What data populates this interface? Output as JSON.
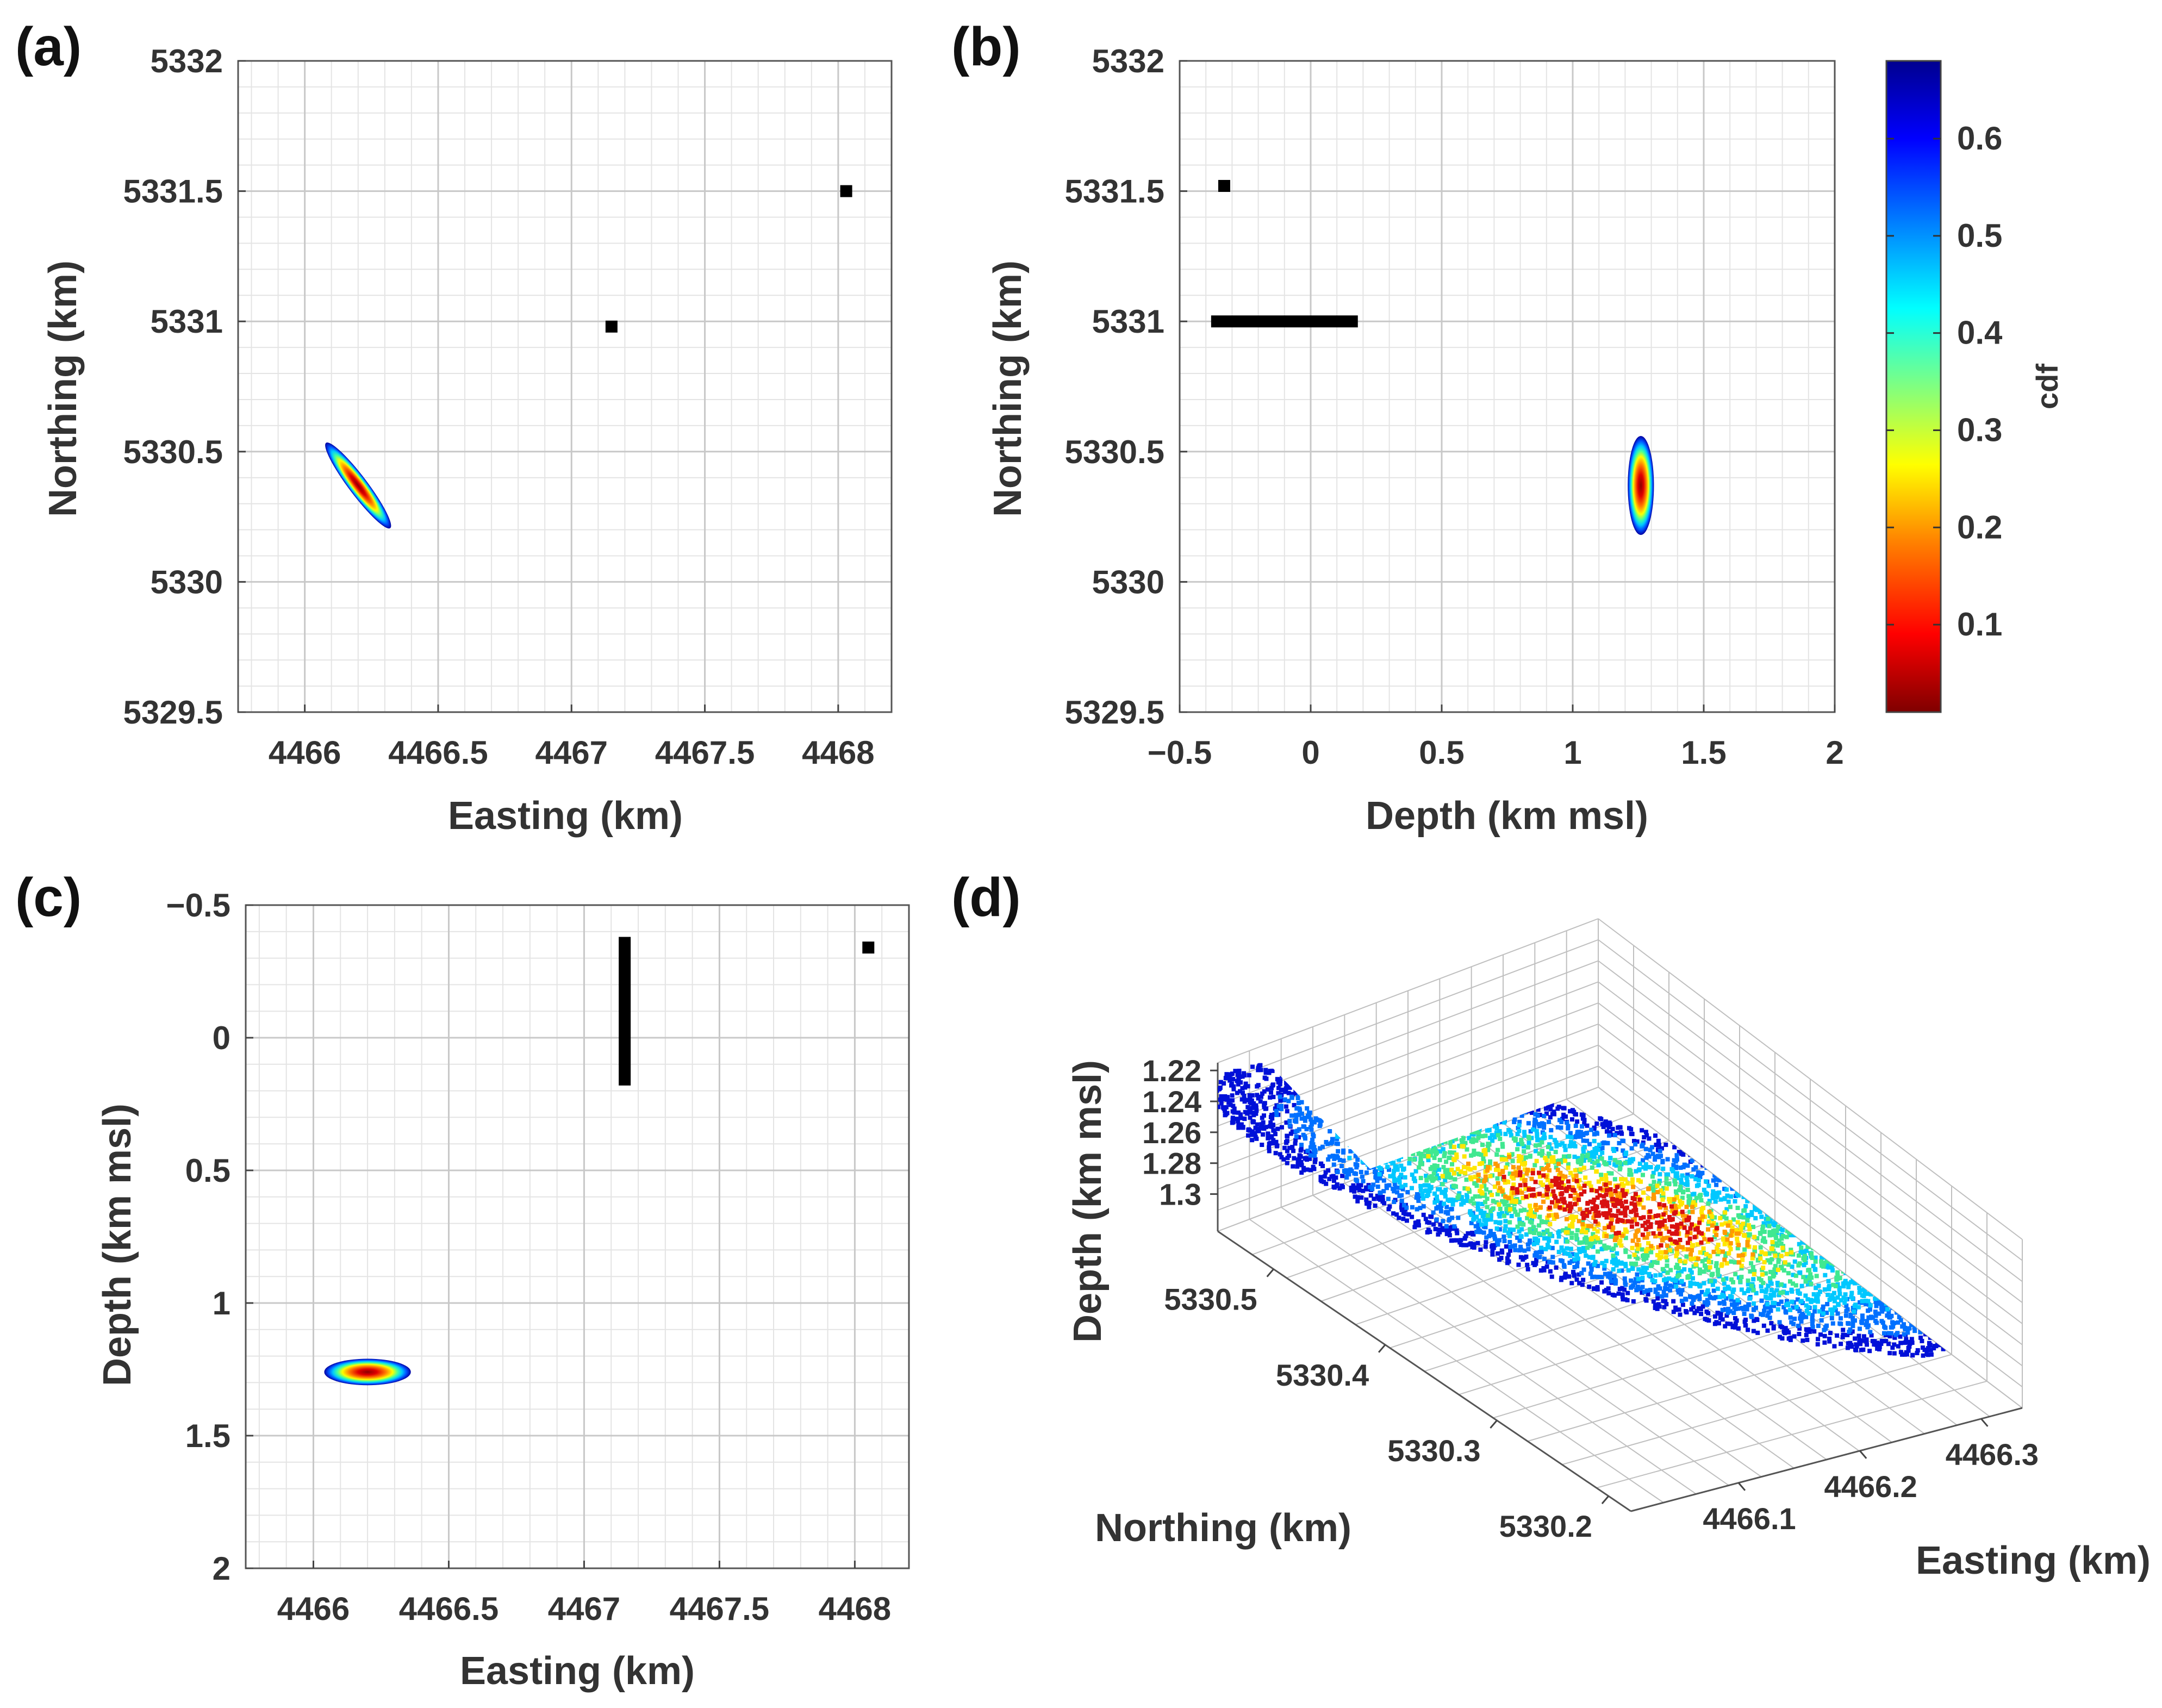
{
  "panel_labels": {
    "a": "(a)",
    "b": "(b)",
    "c": "(c)",
    "d": "(d)"
  },
  "chart_data": [
    {
      "panel": "(a)",
      "type": "heatmap",
      "xlabel": "Easting (km)",
      "ylabel": "Northing (km)",
      "xlim": [
        4465.75,
        4468.2
      ],
      "ylim": [
        5329.5,
        5332
      ],
      "xticks": [
        "4466",
        "4466.5",
        "4467",
        "4467.5",
        "4468"
      ],
      "xtick_values": [
        4466,
        4466.5,
        4467,
        4467.5,
        4468
      ],
      "yticks": [
        "5332",
        "5331.5",
        "5331",
        "5330.5",
        "5330",
        "5329.5"
      ],
      "ytick_values": [
        5332,
        5331.5,
        5331,
        5330.5,
        5330,
        5329.5
      ],
      "grid": true,
      "stations": [
        {
          "x": 4468.03,
          "y": 5331.5
        },
        {
          "x": 4467.15,
          "y": 5330.98
        }
      ],
      "pdf_ellipse": {
        "center_x": 4466.2,
        "center_y": 5330.37,
        "semi_major_km": 0.2,
        "semi_minor_km": 0.035,
        "orientation": "NW-SE"
      }
    },
    {
      "panel": "(b)",
      "type": "heatmap",
      "xlabel": "Depth (km msl)",
      "ylabel": "Northing (km)",
      "xlim": [
        -0.5,
        2
      ],
      "ylim": [
        5329.5,
        5332
      ],
      "xticks": [
        "−0.5",
        "0",
        "0.5",
        "1",
        "1.5",
        "2"
      ],
      "xtick_values": [
        -0.5,
        0,
        0.5,
        1,
        1.5,
        2
      ],
      "yticks": [
        "5332",
        "5331.5",
        "5331",
        "5330.5",
        "5330",
        "5329.5"
      ],
      "ytick_values": [
        5332,
        5331.5,
        5331,
        5330.5,
        5330,
        5329.5
      ],
      "grid": true,
      "stations": [
        {
          "x": -0.33,
          "y": 5331.52
        }
      ],
      "borehole": {
        "x_from": -0.38,
        "x_to": 0.18,
        "y": 5331.0
      },
      "pdf_ellipse": {
        "center_x": 1.26,
        "center_y": 5330.37,
        "semi_x_km": 0.05,
        "semi_y_km": 0.19
      },
      "colorbar": {
        "label": "cdf",
        "range": [
          0.01,
          0.68
        ],
        "ticks": [
          "0.1",
          "0.2",
          "0.3",
          "0.4",
          "0.5",
          "0.6"
        ],
        "tick_values": [
          0.1,
          0.2,
          0.3,
          0.4,
          0.5,
          0.6
        ],
        "colormap": [
          "#7f0000",
          "#ff0000",
          "#ff8000",
          "#ffff00",
          "#80ff80",
          "#00ffff",
          "#0080ff",
          "#0000ff",
          "#00008f"
        ]
      }
    },
    {
      "panel": "(c)",
      "type": "heatmap",
      "xlabel": "Easting (km)",
      "ylabel": "Depth (km msl)",
      "xlim": [
        4465.75,
        4468.2
      ],
      "ylim": [
        -0.5,
        2
      ],
      "y_reversed": true,
      "xticks": [
        "4466",
        "4466.5",
        "4467",
        "4467.5",
        "4468"
      ],
      "xtick_values": [
        4466,
        4466.5,
        4467,
        4467.5,
        4468
      ],
      "yticks": [
        "−0.5",
        "0",
        "0.5",
        "1",
        "1.5",
        "2"
      ],
      "ytick_values": [
        -0.5,
        0,
        0.5,
        1,
        1.5,
        2
      ],
      "grid": true,
      "stations": [
        {
          "x": 4468.05,
          "y": -0.34
        }
      ],
      "borehole": {
        "x": 4467.15,
        "y_from": -0.38,
        "y_to": 0.18
      },
      "pdf_ellipse": {
        "center_x": 4466.2,
        "center_y": 1.26,
        "semi_x_km": 0.16,
        "semi_y_km": 0.05
      }
    },
    {
      "panel": "(d)",
      "type": "scatter",
      "view": "3d",
      "xlabel": "Easting (km)",
      "ylabel": "Northing (km)",
      "zlabel": "Depth (km msl)",
      "xticks": [
        "4466.1",
        "4466.2",
        "4466.3"
      ],
      "xtick_values": [
        4466.1,
        4466.2,
        4466.3
      ],
      "yticks": [
        "5330.2",
        "5330.3",
        "5330.4",
        "5330.5"
      ],
      "ytick_values": [
        5330.2,
        5330.3,
        5330.4,
        5330.5
      ],
      "zticks": [
        "1.22",
        "1.24",
        "1.26",
        "1.28",
        "1.3"
      ],
      "ztick_values": [
        1.22,
        1.24,
        1.26,
        1.28,
        1.3
      ],
      "grid": true,
      "color_by": "cdf"
    }
  ]
}
